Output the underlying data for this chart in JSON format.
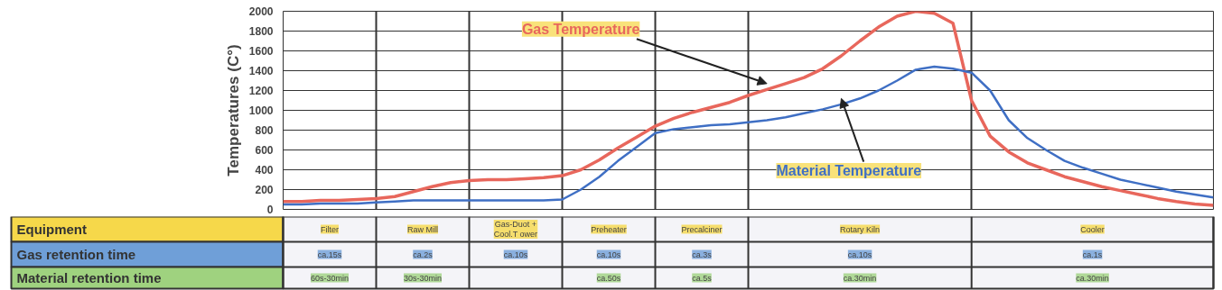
{
  "chart_data": {
    "type": "line",
    "ylabel": "Temperatures (C°)",
    "categories": [
      null,
      null,
      null,
      null,
      null,
      null,
      null,
      null,
      null,
      null,
      null,
      null,
      null,
      null,
      null,
      null,
      null,
      null,
      null,
      null,
      null,
      null,
      null,
      null,
      null,
      null,
      null,
      null,
      null,
      null,
      null,
      null,
      null,
      null,
      null,
      null,
      null,
      null,
      null,
      null,
      null,
      null,
      null,
      null,
      null,
      null,
      null,
      null,
      null,
      null,
      null
    ],
    "series": [
      {
        "name": "Gas Temperature",
        "color": "#e8675c",
        "values": [
          80,
          80,
          90,
          90,
          100,
          110,
          130,
          180,
          230,
          270,
          290,
          300,
          300,
          310,
          320,
          340,
          400,
          500,
          620,
          730,
          840,
          920,
          980,
          1030,
          1080,
          1150,
          1210,
          1270,
          1330,
          1420,
          1550,
          1700,
          1840,
          1950,
          2000,
          1980,
          1880,
          1100,
          740,
          580,
          470,
          400,
          330,
          280,
          230,
          190,
          150,
          110,
          80,
          55,
          40
        ]
      },
      {
        "name": "Material Temperature",
        "color": "#3f6fc4",
        "values": [
          50,
          50,
          60,
          60,
          60,
          70,
          80,
          90,
          90,
          90,
          90,
          90,
          90,
          90,
          90,
          100,
          200,
          330,
          490,
          630,
          770,
          810,
          830,
          850,
          860,
          880,
          900,
          930,
          970,
          1010,
          1060,
          1120,
          1200,
          1300,
          1410,
          1440,
          1420,
          1380,
          1200,
          900,
          720,
          600,
          490,
          420,
          360,
          300,
          260,
          220,
          180,
          150,
          120
        ]
      }
    ],
    "ylim": [
      0,
      2000
    ],
    "yticks": [
      0,
      200,
      400,
      600,
      800,
      1000,
      1200,
      1400,
      1600,
      1800,
      2000
    ],
    "grid": true,
    "tick_labels": "y",
    "marker": "none",
    "line_style": "solid",
    "annotations": [
      "Equipment",
      "Gas retention time",
      "Material retention time",
      "Filter",
      "Raw Mill",
      "Gas-Duot +\nCool.T ower",
      "Preheater",
      "Precalciner",
      "Rotary Kiln",
      "Cooler",
      "ca.15s",
      "ca.2s",
      "ca.10s",
      "ca.10s",
      "ca.3s",
      "ca.10s",
      "ca.1s",
      "60s-30min",
      "30s-30min",
      "ca.50s",
      "ca.5s",
      "ca.30min",
      "ca.30min"
    ]
  }
}
